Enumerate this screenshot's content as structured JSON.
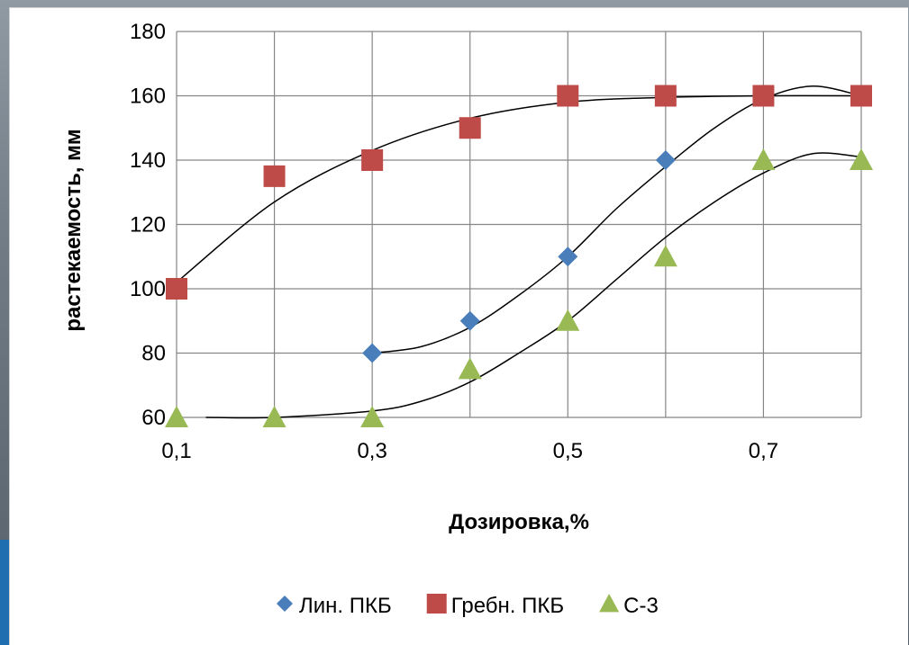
{
  "chart_data": {
    "type": "scatter",
    "xlabel": "Дозировка,%",
    "ylabel": "растекаемость, мм",
    "xlim": [
      0.1,
      0.8
    ],
    "ylim": [
      60,
      180
    ],
    "x_ticks": [
      0.1,
      0.3,
      0.5,
      0.7
    ],
    "x_tick_labels": [
      "0,1",
      "0,3",
      "0,5",
      "0,7"
    ],
    "y_ticks": [
      60,
      80,
      100,
      120,
      140,
      160,
      180
    ],
    "y_tick_labels": [
      "60",
      "80",
      "100",
      "120",
      "140",
      "160",
      "180"
    ],
    "grid": true,
    "legend_position": "bottom",
    "series": [
      {
        "name": "Лин. ПКБ",
        "marker": "diamond",
        "color": "#4a7ebb",
        "x": [
          0.3,
          0.4,
          0.5,
          0.6
        ],
        "y": [
          80,
          90,
          110,
          140
        ]
      },
      {
        "name": "Гребн. ПКБ",
        "marker": "square",
        "color": "#be4b48",
        "x": [
          0.1,
          0.2,
          0.3,
          0.4,
          0.5,
          0.6,
          0.7,
          0.8
        ],
        "y": [
          100,
          135,
          140,
          150,
          160,
          160,
          160,
          160
        ]
      },
      {
        "name": "С-3",
        "marker": "triangle",
        "color": "#98b954",
        "x": [
          0.1,
          0.2,
          0.3,
          0.4,
          0.5,
          0.6,
          0.7,
          0.8
        ],
        "y": [
          60,
          60,
          60,
          75,
          90,
          110,
          140,
          140
        ]
      }
    ],
    "trendlines": [
      {
        "color": "#000000",
        "x": [
          0.1,
          0.2,
          0.3,
          0.4,
          0.5,
          0.6,
          0.7,
          0.8
        ],
        "y": [
          102,
          127,
          143,
          153,
          158,
          159.5,
          160,
          160
        ]
      },
      {
        "color": "#000000",
        "x": [
          0.3,
          0.35,
          0.4,
          0.45,
          0.5,
          0.55,
          0.6,
          0.65,
          0.7,
          0.75,
          0.8
        ],
        "y": [
          80,
          82,
          88,
          98,
          110,
          125,
          138,
          150,
          159,
          163,
          160
        ]
      },
      {
        "color": "#000000",
        "x": [
          0.13,
          0.2,
          0.3,
          0.35,
          0.4,
          0.45,
          0.5,
          0.55,
          0.6,
          0.65,
          0.7,
          0.75,
          0.8
        ],
        "y": [
          60,
          60,
          62,
          65,
          71,
          80,
          90,
          103,
          116,
          127,
          136,
          142,
          141
        ]
      }
    ]
  }
}
